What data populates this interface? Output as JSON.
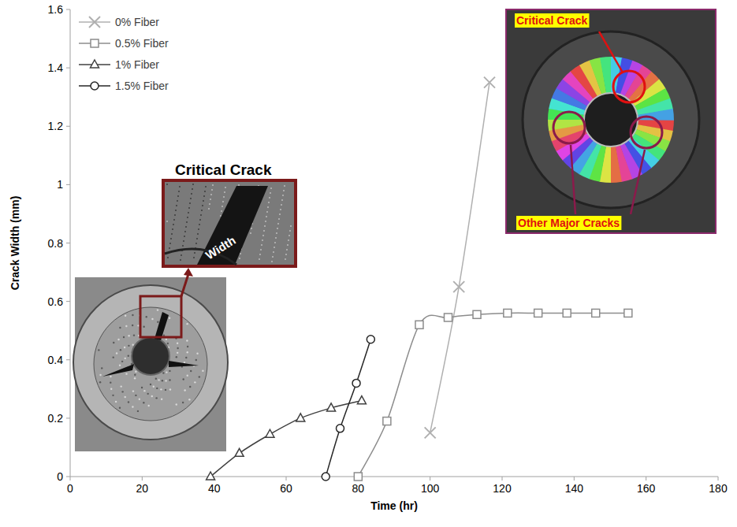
{
  "chart_data": {
    "type": "line",
    "x_label": "Time (hr)",
    "y_label": "Crack Width (mm)",
    "xlim": [
      0,
      180
    ],
    "xticks": [
      0,
      20,
      40,
      60,
      80,
      100,
      120,
      140,
      160,
      180
    ],
    "ylim": [
      0,
      1.6
    ],
    "yticks": [
      0,
      0.2,
      0.4,
      0.6,
      0.8,
      1,
      1.2,
      1.4,
      1.6
    ],
    "grid": false,
    "legend": "upper left",
    "series": [
      {
        "name": "0% Fiber",
        "color": "#b0b0b0",
        "marker": "x",
        "line_style": "solid",
        "x": [
          100,
          108,
          116.5
        ],
        "values": [
          0.15,
          0.65,
          1.35
        ]
      },
      {
        "name": "0.5% Fiber",
        "color": "#8c8c8c",
        "marker": "square",
        "line_style": "solid",
        "x": [
          80,
          88,
          97,
          105,
          113,
          121.5,
          130,
          138,
          146,
          155
        ],
        "values": [
          0,
          0.19,
          0.52,
          0.545,
          0.555,
          0.56,
          0.56,
          0.56,
          0.56,
          0.56
        ]
      },
      {
        "name": "1% Fiber",
        "color": "#404040",
        "marker": "triangle",
        "line_style": "solid",
        "x": [
          39,
          47,
          55.5,
          64,
          72.5,
          81
        ],
        "values": [
          0,
          0.08,
          0.145,
          0.2,
          0.235,
          0.26
        ]
      },
      {
        "name": "1.5% Fiber",
        "color": "#262626",
        "marker": "circle",
        "line_style": "solid",
        "x": [
          71,
          75,
          79.5,
          83.5
        ],
        "values": [
          0,
          0.165,
          0.32,
          0.47
        ]
      }
    ],
    "annotations": [
      {
        "text": "Critical Crack"
      },
      {
        "text": "Width"
      },
      {
        "text": "Critical Crack"
      },
      {
        "text": "Other Major Cracks"
      }
    ]
  }
}
